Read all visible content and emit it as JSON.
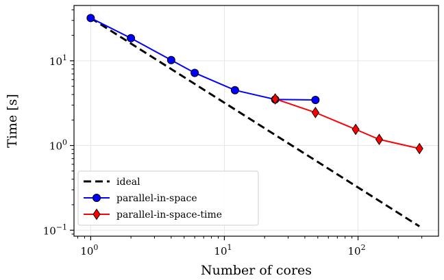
{
  "chart_data": {
    "type": "line",
    "title": "",
    "xlabel": "Number of cores",
    "ylabel": "Time [s]",
    "xscale": "log",
    "yscale": "log",
    "xlim": [
      0.75,
      400
    ],
    "ylim": [
      0.085,
      45
    ],
    "grid": true,
    "legend_position": "lower-left",
    "x_ticks": [
      {
        "value": 1,
        "base": "10",
        "exp": "0"
      },
      {
        "value": 10,
        "base": "10",
        "exp": "1"
      },
      {
        "value": 100,
        "base": "10",
        "exp": "2"
      }
    ],
    "y_ticks": [
      {
        "value": 0.1,
        "base": "10",
        "exp": "−1"
      },
      {
        "value": 1,
        "base": "10",
        "exp": "0"
      },
      {
        "value": 10,
        "base": "10",
        "exp": "1"
      }
    ],
    "series": [
      {
        "name": "ideal",
        "color": "#000000",
        "style": "dashed",
        "marker": "none",
        "x": [
          1,
          288
        ],
        "y": [
          32,
          0.111
        ]
      },
      {
        "name": "parallel-in-space",
        "color": "#0000ff",
        "style": "solid",
        "marker": "circle",
        "x": [
          1,
          2,
          4,
          6,
          12,
          24,
          48
        ],
        "y": [
          32,
          18.5,
          10.2,
          7.2,
          4.5,
          3.5,
          3.45
        ]
      },
      {
        "name": "parallel-in-space-time",
        "color": "#ff0000",
        "style": "solid",
        "marker": "diamond",
        "x": [
          24,
          48,
          96,
          144,
          288
        ],
        "y": [
          3.55,
          2.45,
          1.55,
          1.18,
          0.92
        ]
      }
    ]
  }
}
